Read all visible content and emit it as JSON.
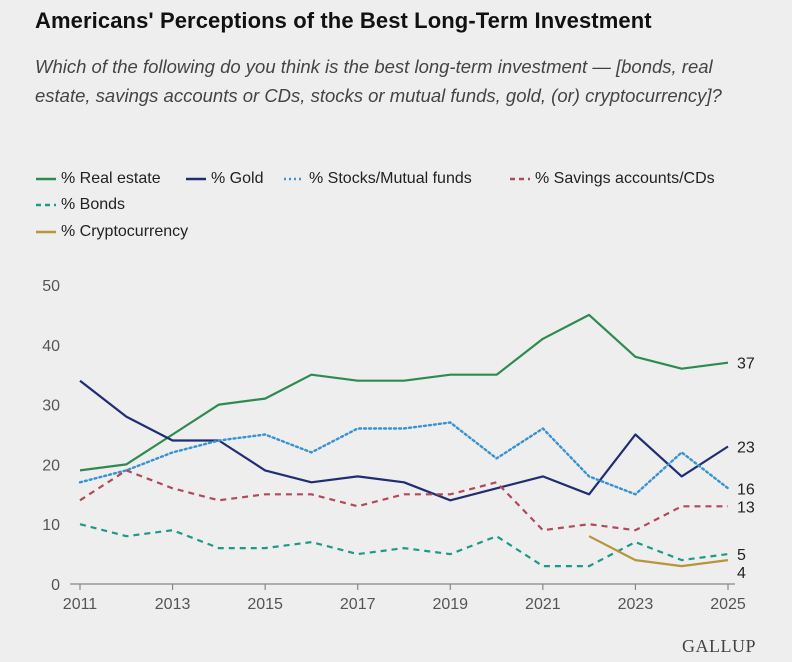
{
  "header": {
    "title": "Americans' Perceptions of the Best Long-Term Investment",
    "subtitle": "Which of the following do you think is the best long-term investment — [bonds, real estate, savings accounts or CDs, stocks or mutual funds, gold, (or) cryptocurrency]?"
  },
  "brand": "GALLUP",
  "chart_data": {
    "type": "line",
    "ylim": [
      0,
      50
    ],
    "yticks": [
      0,
      10,
      20,
      30,
      40,
      50
    ],
    "xlim": [
      2011,
      2025
    ],
    "xticks": [
      2011,
      2013,
      2015,
      2017,
      2019,
      2021,
      2023,
      2025
    ],
    "grid": false,
    "legend_placement": "top",
    "series": [
      {
        "name": "% Real estate",
        "color": "#2e8b4f",
        "style": "solid",
        "x": [
          2011,
          2012,
          2013,
          2014,
          2015,
          2016,
          2017,
          2018,
          2019,
          2020,
          2021,
          2022,
          2023,
          2024,
          2025
        ],
        "values": [
          19,
          20,
          25,
          30,
          31,
          35,
          34,
          34,
          35,
          35,
          41,
          45,
          38,
          36,
          37
        ],
        "end_label": "37"
      },
      {
        "name": "% Gold",
        "color": "#1f2d73",
        "style": "solid",
        "x": [
          2011,
          2012,
          2013,
          2014,
          2015,
          2016,
          2017,
          2018,
          2019,
          2020,
          2021,
          2022,
          2023,
          2024,
          2025
        ],
        "values": [
          34,
          28,
          24,
          24,
          19,
          17,
          18,
          17,
          14,
          16,
          18,
          15,
          25,
          18,
          23
        ],
        "end_label": "23"
      },
      {
        "name": "% Stocks/Mutual funds",
        "color": "#3a93d1",
        "style": "dotted",
        "x": [
          2011,
          2012,
          2013,
          2014,
          2015,
          2016,
          2017,
          2018,
          2019,
          2020,
          2021,
          2022,
          2023,
          2024,
          2025
        ],
        "values": [
          17,
          19,
          22,
          24,
          25,
          22,
          26,
          26,
          27,
          21,
          26,
          18,
          15,
          22,
          16
        ],
        "end_label": "16"
      },
      {
        "name": "% Savings accounts/CDs",
        "color": "#b04a5a",
        "style": "dashed",
        "x": [
          2011,
          2012,
          2013,
          2014,
          2015,
          2016,
          2017,
          2018,
          2019,
          2020,
          2021,
          2022,
          2023,
          2024,
          2025
        ],
        "values": [
          14,
          19,
          16,
          14,
          15,
          15,
          13,
          15,
          15,
          17,
          9,
          10,
          9,
          13,
          13
        ],
        "end_label": "13"
      },
      {
        "name": "% Bonds",
        "color": "#1b9a8a",
        "style": "dashed",
        "x": [
          2011,
          2012,
          2013,
          2014,
          2015,
          2016,
          2017,
          2018,
          2019,
          2020,
          2021,
          2022,
          2023,
          2024,
          2025
        ],
        "values": [
          10,
          8,
          9,
          6,
          6,
          7,
          5,
          6,
          5,
          8,
          3,
          3,
          7,
          4,
          5
        ],
        "end_label": "5"
      },
      {
        "name": "% Cryptocurrency",
        "color": "#b8943a",
        "style": "solid",
        "x": [
          2022,
          2023,
          2024,
          2025
        ],
        "values": [
          8,
          4,
          3,
          4
        ],
        "end_label": "4"
      }
    ]
  }
}
